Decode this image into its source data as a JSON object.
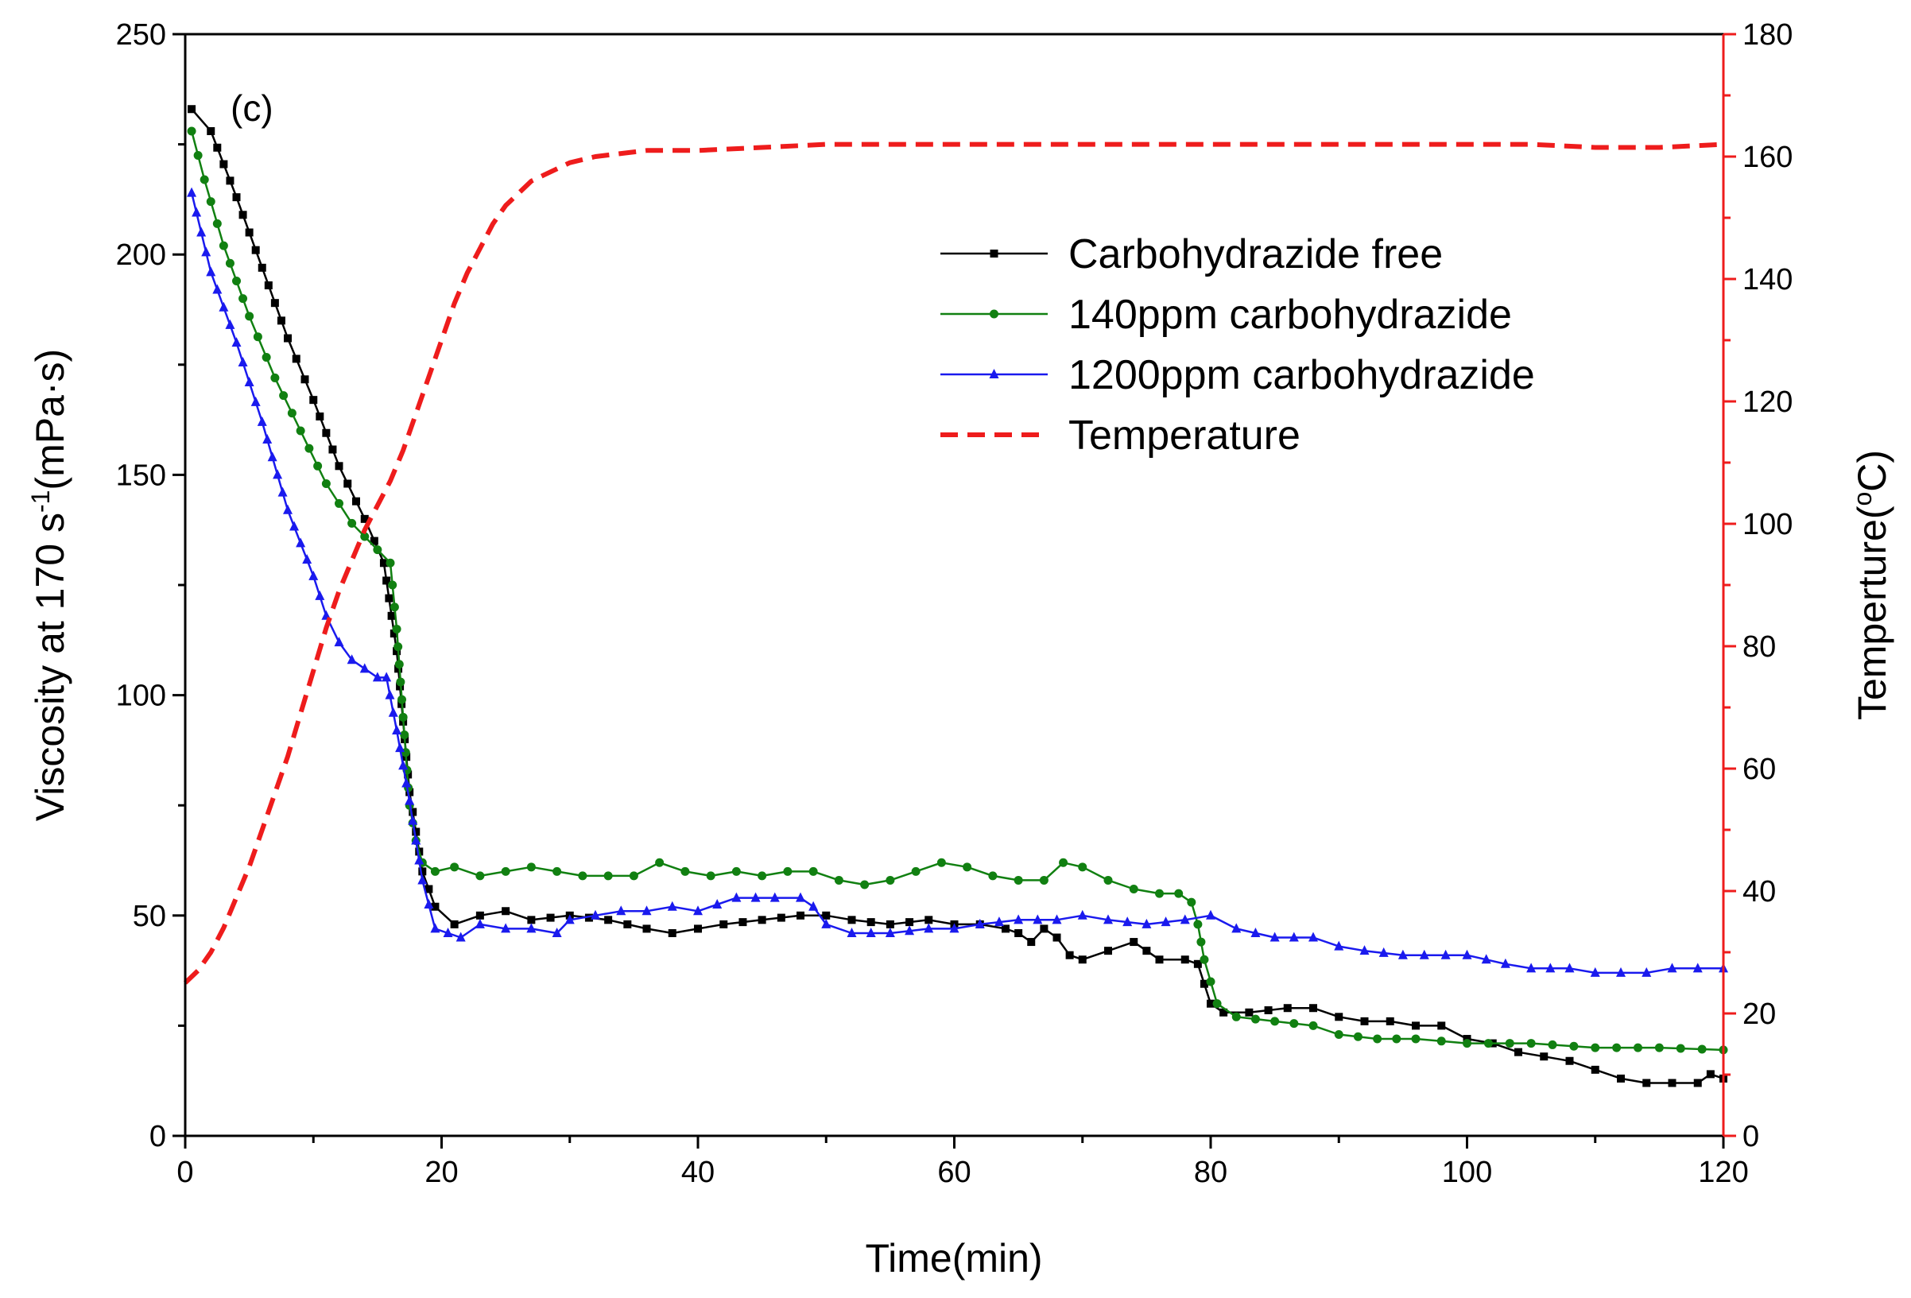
{
  "chart_data": {
    "type": "line",
    "panel_label": "(c)",
    "xlabel": "Time(min)",
    "ylabel_left": "Viscosity at 170 s",
    "ylabel_left_exp": "-1",
    "ylabel_left_unit": "(mPa·s)",
    "ylabel_right": "Temperture(",
    "ylabel_right_deg": "o",
    "ylabel_right_unit": "C)",
    "xlim": [
      0,
      120
    ],
    "ylim_left": [
      0,
      250
    ],
    "ylim_right": [
      0,
      180
    ],
    "x_ticks": [
      0,
      20,
      40,
      60,
      80,
      100,
      120
    ],
    "y_left_ticks": [
      0,
      50,
      100,
      150,
      200,
      250
    ],
    "y_right_ticks": [
      0,
      20,
      40,
      60,
      80,
      100,
      120,
      140,
      160,
      180
    ],
    "grid": false,
    "legend_position": "top-right",
    "series": [
      {
        "name": "Carbohydrazide free",
        "color": "#000000",
        "marker": "square",
        "axis": "left",
        "x": [
          0.5,
          2,
          4,
          6,
          8,
          10,
          12,
          14,
          15.5,
          16.5,
          17.5,
          18.5,
          19.5,
          21,
          23,
          25,
          27,
          30,
          33,
          36,
          38,
          40,
          42,
          45,
          48,
          50,
          52,
          55,
          58,
          60,
          62,
          64,
          65,
          66,
          67,
          68,
          69,
          70,
          72,
          74,
          75,
          76,
          78,
          79,
          80,
          81,
          83,
          86,
          88,
          90,
          92,
          94,
          96,
          98,
          100,
          102,
          104,
          106,
          108,
          110,
          112,
          114,
          116,
          118,
          119,
          120
        ],
        "y": [
          233,
          228,
          213,
          197,
          181,
          167,
          152,
          140,
          130,
          110,
          78,
          60,
          52,
          48,
          50,
          51,
          49,
          50,
          49,
          47,
          46,
          47,
          48,
          49,
          50,
          50,
          49,
          48,
          49,
          48,
          48,
          47,
          46,
          44,
          47,
          45,
          41,
          40,
          42,
          44,
          42,
          40,
          40,
          39,
          30,
          28,
          28,
          29,
          29,
          27,
          26,
          26,
          25,
          25,
          22,
          21,
          19,
          18,
          17,
          15,
          13,
          12,
          12,
          12,
          14,
          13
        ]
      },
      {
        "name": "140ppm carbohydrazide",
        "color": "#118011",
        "marker": "circle",
        "axis": "left",
        "x": [
          0.5,
          1.5,
          3,
          5,
          7,
          9,
          11,
          13,
          15,
          16,
          16.5,
          17,
          17.5,
          18,
          18.5,
          19.5,
          21,
          23,
          25,
          27,
          29,
          31,
          33,
          35,
          37,
          39,
          41,
          43,
          45,
          47,
          49,
          51,
          53,
          55,
          57,
          59,
          61,
          63,
          65,
          67,
          68.5,
          70,
          72,
          74,
          76,
          77.5,
          78.5,
          79,
          79.5,
          80.5,
          82,
          85,
          88,
          90,
          93,
          96,
          100,
          105,
          110,
          115,
          120
        ],
        "y": [
          228,
          217,
          202,
          186,
          172,
          160,
          148,
          139,
          133,
          130,
          115,
          95,
          75,
          67,
          62,
          60,
          61,
          59,
          60,
          61,
          60,
          59,
          59,
          59,
          62,
          60,
          59,
          60,
          59,
          60,
          60,
          58,
          57,
          58,
          60,
          62,
          61,
          59,
          58,
          58,
          62,
          61,
          58,
          56,
          55,
          55,
          53,
          48,
          40,
          30,
          27,
          26,
          25,
          23,
          22,
          22,
          21,
          21,
          20,
          20,
          19.5
        ]
      },
      {
        "name": "1200ppm carbohydrazide",
        "color": "#1a1aee",
        "marker": "triangle",
        "axis": "left",
        "x": [
          0.5,
          2,
          4,
          6,
          8,
          10,
          11,
          12,
          13,
          14,
          15,
          15.7,
          16.5,
          17.5,
          18.5,
          19.5,
          20.5,
          21.5,
          23,
          25,
          27,
          29,
          30,
          32,
          34,
          36,
          38,
          40,
          43,
          46,
          48,
          49,
          50,
          52,
          55,
          58,
          60,
          62,
          65,
          68,
          70,
          72,
          75,
          78,
          80,
          82,
          85,
          88,
          90,
          92,
          95,
          100,
          103,
          105,
          108,
          110,
          112,
          114,
          116,
          118,
          120
        ],
        "y": [
          214,
          196,
          180,
          162,
          142,
          127,
          118,
          112,
          108,
          106,
          104,
          104,
          92,
          76,
          58,
          47,
          46,
          45,
          48,
          47,
          47,
          46,
          49,
          50,
          51,
          51,
          52,
          51,
          54,
          54,
          54,
          52,
          48,
          46,
          46,
          47,
          47,
          48,
          49,
          49,
          50,
          49,
          48,
          49,
          50,
          47,
          45,
          45,
          43,
          42,
          41,
          41,
          39,
          38,
          38,
          37,
          37,
          37,
          38,
          38,
          38
        ]
      },
      {
        "name": "Temperature",
        "color": "#ee1c1c",
        "marker": "none",
        "line_style": "dashed",
        "axis": "right",
        "x": [
          0,
          1,
          2,
          3,
          4,
          5,
          6,
          7,
          8,
          9,
          10,
          11,
          12,
          13,
          14,
          15,
          16,
          17,
          18,
          19,
          20,
          21,
          22,
          23,
          24,
          25,
          26,
          27,
          28,
          29,
          30,
          32,
          34,
          36,
          38,
          40,
          45,
          50,
          55,
          60,
          65,
          70,
          75,
          80,
          85,
          90,
          95,
          100,
          105,
          110,
          115,
          120
        ],
        "y": [
          25,
          27,
          30,
          34,
          39,
          44,
          50,
          56,
          62,
          69,
          76,
          83,
          89,
          94,
          99,
          103,
          107,
          112,
          118,
          124,
          130,
          136,
          141,
          145,
          149,
          152,
          154,
          156,
          157,
          158,
          159,
          160,
          160.5,
          161,
          161,
          161,
          161.5,
          162,
          162,
          162,
          162,
          162,
          162,
          162,
          162,
          162,
          162,
          162,
          162,
          161.5,
          161.5,
          162
        ]
      }
    ]
  }
}
